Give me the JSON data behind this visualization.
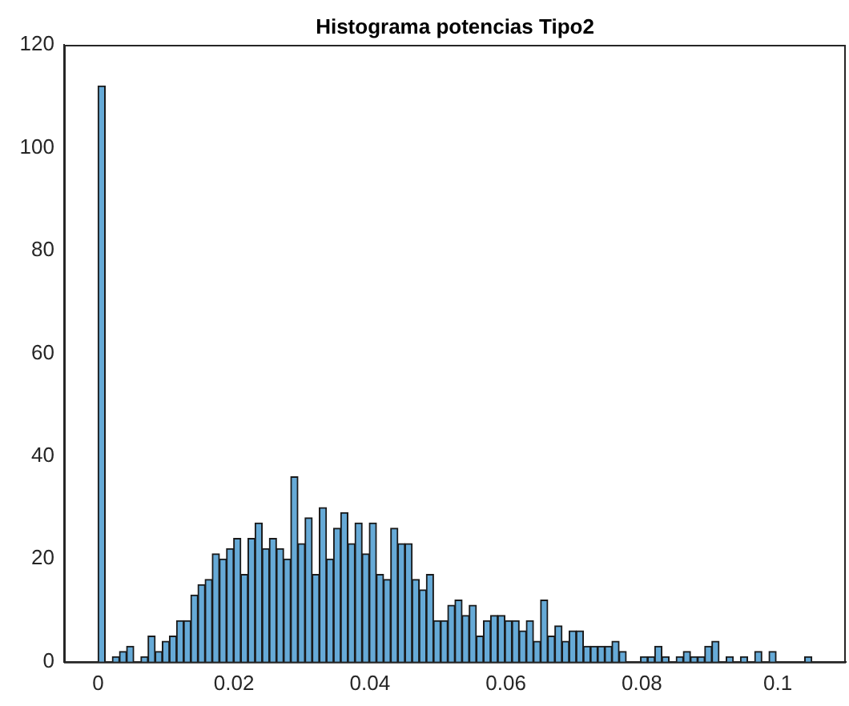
{
  "chart_data": {
    "type": "histogram",
    "title": "Histograma potencias Tipo2",
    "color": "#66aad7",
    "bins": [
      0,
      0.00105,
      0.0021,
      0.00315,
      0.0042,
      0.00525,
      0.0063,
      0.00735,
      0.0084,
      0.00945,
      0.0105,
      0.01155,
      0.0126,
      0.01365,
      0.0147,
      0.01575,
      0.0168,
      0.01785,
      0.0189,
      0.01995,
      0.021,
      0.02205,
      0.0231,
      0.02415,
      0.0252,
      0.02625,
      0.0273,
      0.02835,
      0.0294,
      0.03045,
      0.0315,
      0.03255,
      0.0336,
      0.03465,
      0.0357,
      0.03675,
      0.0378,
      0.03885,
      0.0399,
      0.04095,
      0.042,
      0.04305,
      0.0441,
      0.04515,
      0.0462,
      0.04725,
      0.0483,
      0.04935,
      0.0504,
      0.05145,
      0.0525,
      0.05355,
      0.0546,
      0.05565,
      0.0567,
      0.05775,
      0.0588,
      0.05985,
      0.0609,
      0.06195,
      0.063,
      0.06405,
      0.0651,
      0.06615,
      0.0672,
      0.06825,
      0.0693,
      0.07035,
      0.0714,
      0.07245,
      0.0735,
      0.07455,
      0.0756,
      0.07665,
      0.0777,
      0.07875,
      0.0798,
      0.08085,
      0.0819,
      0.08295,
      0.084,
      0.08505,
      0.0861,
      0.08715,
      0.0882,
      0.08925,
      0.0903,
      0.09135,
      0.0924,
      0.09345,
      0.0945,
      0.09555,
      0.0966,
      0.09765,
      0.0987,
      0.09975,
      0.1008,
      0.10185,
      0.1029,
      0.10395,
      0.105
    ],
    "values": [
      112,
      0,
      1,
      2,
      3,
      0,
      1,
      5,
      2,
      4,
      5,
      8,
      8,
      13,
      15,
      16,
      21,
      20,
      22,
      24,
      17,
      24,
      27,
      22,
      24,
      22,
      20,
      36,
      23,
      28,
      17,
      30,
      20,
      26,
      29,
      23,
      27,
      21,
      27,
      17,
      16,
      26,
      23,
      23,
      16,
      14,
      17,
      8,
      8,
      11,
      12,
      9,
      11,
      5,
      8,
      9,
      9,
      8,
      8,
      6,
      8,
      4,
      12,
      5,
      7,
      4,
      6,
      6,
      3,
      3,
      3,
      3,
      4,
      2,
      0,
      0,
      1,
      1,
      3,
      1,
      0,
      1,
      2,
      1,
      1,
      3,
      4,
      0,
      1,
      0,
      1,
      0,
      2,
      0,
      2,
      0,
      0,
      0,
      0,
      1
    ],
    "xlim": [
      -0.005,
      0.11
    ],
    "xticks": [
      {
        "value": 0,
        "label": "0"
      },
      0.02,
      0.04,
      0.06,
      0.08,
      0.1
    ],
    "ylim": [
      0,
      120
    ],
    "yticks": [
      0,
      20,
      40,
      60,
      80,
      100,
      120
    ],
    "grid": false,
    "legend": false
  }
}
